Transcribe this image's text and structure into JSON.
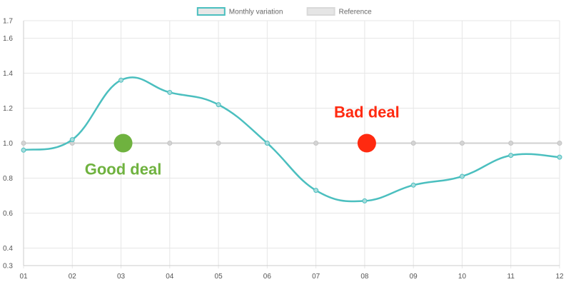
{
  "chart_data": {
    "type": "line",
    "categories": [
      "01",
      "02",
      "03",
      "04",
      "05",
      "06",
      "07",
      "08",
      "09",
      "10",
      "11",
      "12"
    ],
    "series": [
      {
        "name": "Monthly variation",
        "color": "#4bbfbf",
        "values": [
          0.96,
          1.02,
          1.36,
          1.29,
          1.22,
          1.0,
          0.73,
          0.67,
          0.76,
          0.81,
          0.93,
          0.92
        ],
        "smooth": true
      },
      {
        "name": "Reference",
        "color": "#d0d0d0",
        "values": [
          1.0,
          1.0,
          1.0,
          1.0,
          1.0,
          1.0,
          1.0,
          1.0,
          1.0,
          1.0,
          1.0,
          1.0
        ],
        "smooth": false
      }
    ],
    "ylim": [
      0.3,
      1.7
    ],
    "yticks": [
      "0.3",
      "0.4",
      "0.6",
      "0.8",
      "1.0",
      "1.2",
      "1.4",
      "1.6",
      "1.7"
    ],
    "grid": true,
    "legend_position": "top-center",
    "annotations": [
      {
        "text": "Good deal",
        "color": "#6fb23f",
        "x_category": "03",
        "marker_y": 1.0,
        "label_position": "below"
      },
      {
        "text": "Bad deal",
        "color": "#ff2a10",
        "x_category": "08",
        "marker_y": 1.0,
        "label_position": "above"
      }
    ]
  }
}
